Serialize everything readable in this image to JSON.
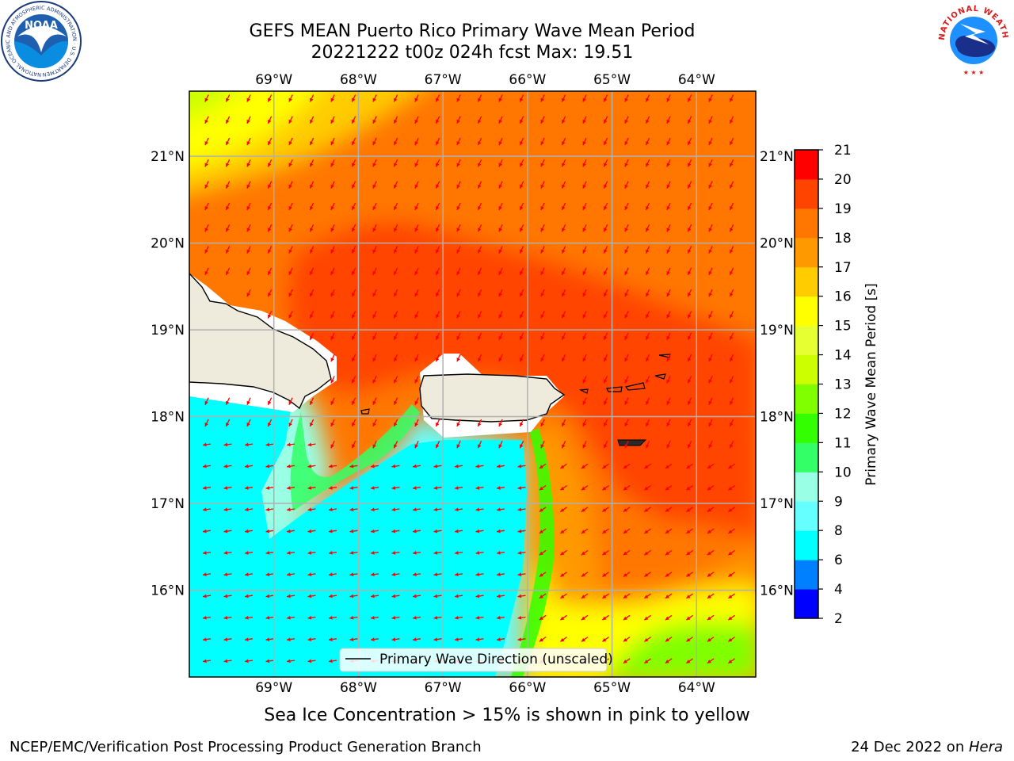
{
  "title": {
    "line1": "GEFS MEAN Puerto Rico Primary Wave Mean Period",
    "line2": "20221222 t00z 024h fcst   Max: 19.51"
  },
  "logos": {
    "left": {
      "name": "noaa-logo",
      "text": "NOAA",
      "ring_text": "NATIONAL OCEANIC AND ATMOSPHERIC ADMINISTRATION · U.S. DEPARTMENT OF COMMERCE"
    },
    "right": {
      "name": "nws-logo",
      "ring_text": "NATIONAL WEATHER SERVICE"
    }
  },
  "map": {
    "lon_ticks": [
      "69°W",
      "68°W",
      "67°W",
      "66°W",
      "65°W",
      "64°W"
    ],
    "lat_ticks": [
      "21°N",
      "20°N",
      "19°N",
      "18°N",
      "17°N",
      "16°N"
    ],
    "lon_values": [
      -69,
      -68,
      -67,
      -66,
      -65,
      -64
    ],
    "lat_values": [
      21,
      20,
      19,
      18,
      17,
      16
    ],
    "extent": {
      "lon_min": -70.0,
      "lon_max": -63.3,
      "lat_min": 15.0,
      "lat_max": 21.75
    },
    "land_color": "#efebdc",
    "arrow_color": "#ff0000",
    "grid_color": "#b0b0b0",
    "legend_label": "Primary Wave Direction (unscaled)"
  },
  "colorbar": {
    "label": "Primary Wave Mean Period [s]",
    "ticks": [
      "2",
      "4",
      "6",
      "8",
      "9",
      "10",
      "11",
      "12",
      "13",
      "14",
      "15",
      "16",
      "17",
      "18",
      "19",
      "20",
      "21"
    ],
    "colors": [
      "#0000ff",
      "#0080ff",
      "#00ffff",
      "#66ffff",
      "#99ffe5",
      "#33ff66",
      "#33ff00",
      "#80ff00",
      "#ccff00",
      "#e5ff33",
      "#ffff00",
      "#ffcc00",
      "#ff9900",
      "#ff7700",
      "#ff4400",
      "#ff0000"
    ]
  },
  "sea_ice_note": "Sea Ice Concentration > 15% is shown in pink to yellow",
  "footer": {
    "left": "NCEP/EMC/Verification Post Processing Product Generation Branch",
    "right_date": "24 Dec 2022 on ",
    "right_host": "Hera"
  }
}
